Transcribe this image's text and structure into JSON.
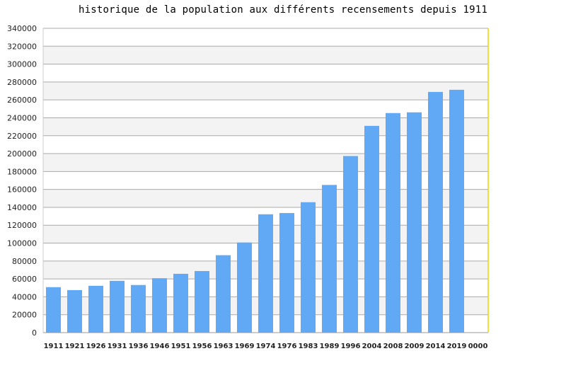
{
  "chart_data": {
    "type": "bar",
    "title": "historique de la population aux différents recensements depuis 1911",
    "xlabel": "",
    "ylabel": "",
    "categories": [
      "1911",
      "1921",
      "1926",
      "1931",
      "1936",
      "1946",
      "1951",
      "1956",
      "1963",
      "1969",
      "1974",
      "1976",
      "1983",
      "1989",
      "1996",
      "2004",
      "2008",
      "2009",
      "2014",
      "2019",
      "0000"
    ],
    "values": [
      50800,
      47500,
      52300,
      57900,
      53200,
      60800,
      65700,
      68800,
      86500,
      100700,
      132200,
      133600,
      145700,
      165000,
      197300,
      231000,
      245300,
      246100,
      268900,
      271300,
      null
    ],
    "ylim": [
      0,
      340000
    ],
    "yticks": [
      "0",
      "20000",
      "40000",
      "60000",
      "80000",
      "100000",
      "120000",
      "140000",
      "160000",
      "180000",
      "200000",
      "220000",
      "240000",
      "260000",
      "280000",
      "300000",
      "320000",
      "340000"
    ],
    "grid": true,
    "colors": {
      "bar": "#62a9f5",
      "band": "#f3f3f3",
      "grid": "#aaaaaa",
      "right_edge": "#f5d000"
    }
  }
}
